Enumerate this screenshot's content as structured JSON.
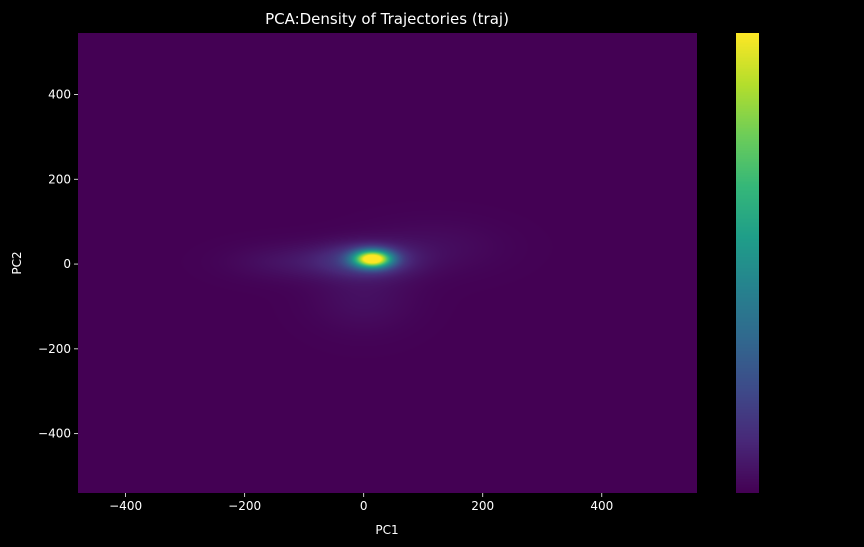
{
  "chart_data": {
    "type": "heatmap",
    "title": "PCA:Density of Trajectories (traj)",
    "xlabel": "PC1",
    "ylabel": "PC2",
    "xlim": [
      -480,
      560
    ],
    "ylim": [
      -540,
      545
    ],
    "x_ticks": [
      -400,
      -200,
      0,
      200,
      400
    ],
    "y_ticks": [
      -400,
      -200,
      0,
      200,
      400
    ],
    "x_tick_labels": [
      "−400",
      "−200",
      "0",
      "200",
      "400"
    ],
    "y_tick_labels": [
      "−400",
      "−200",
      "0",
      "200",
      "400"
    ],
    "colormap": "viridis",
    "colorbar": true,
    "colorbar_ticks": [],
    "grid": false,
    "background": "#000000",
    "text_color": "#ffffff",
    "density_components": [
      {
        "cx": 15,
        "cy": 12,
        "sx": 22,
        "sy": 14,
        "weight": 1.0
      },
      {
        "cx": 5,
        "cy": 10,
        "sx": 55,
        "sy": 28,
        "weight": 0.18
      },
      {
        "cx": -120,
        "cy": 5,
        "sx": 70,
        "sy": 30,
        "weight": 0.05
      },
      {
        "cx": 0,
        "cy": -80,
        "sx": 60,
        "sy": 55,
        "weight": 0.04
      },
      {
        "cx": 120,
        "cy": 40,
        "sx": 80,
        "sy": 45,
        "weight": 0.03
      }
    ]
  }
}
